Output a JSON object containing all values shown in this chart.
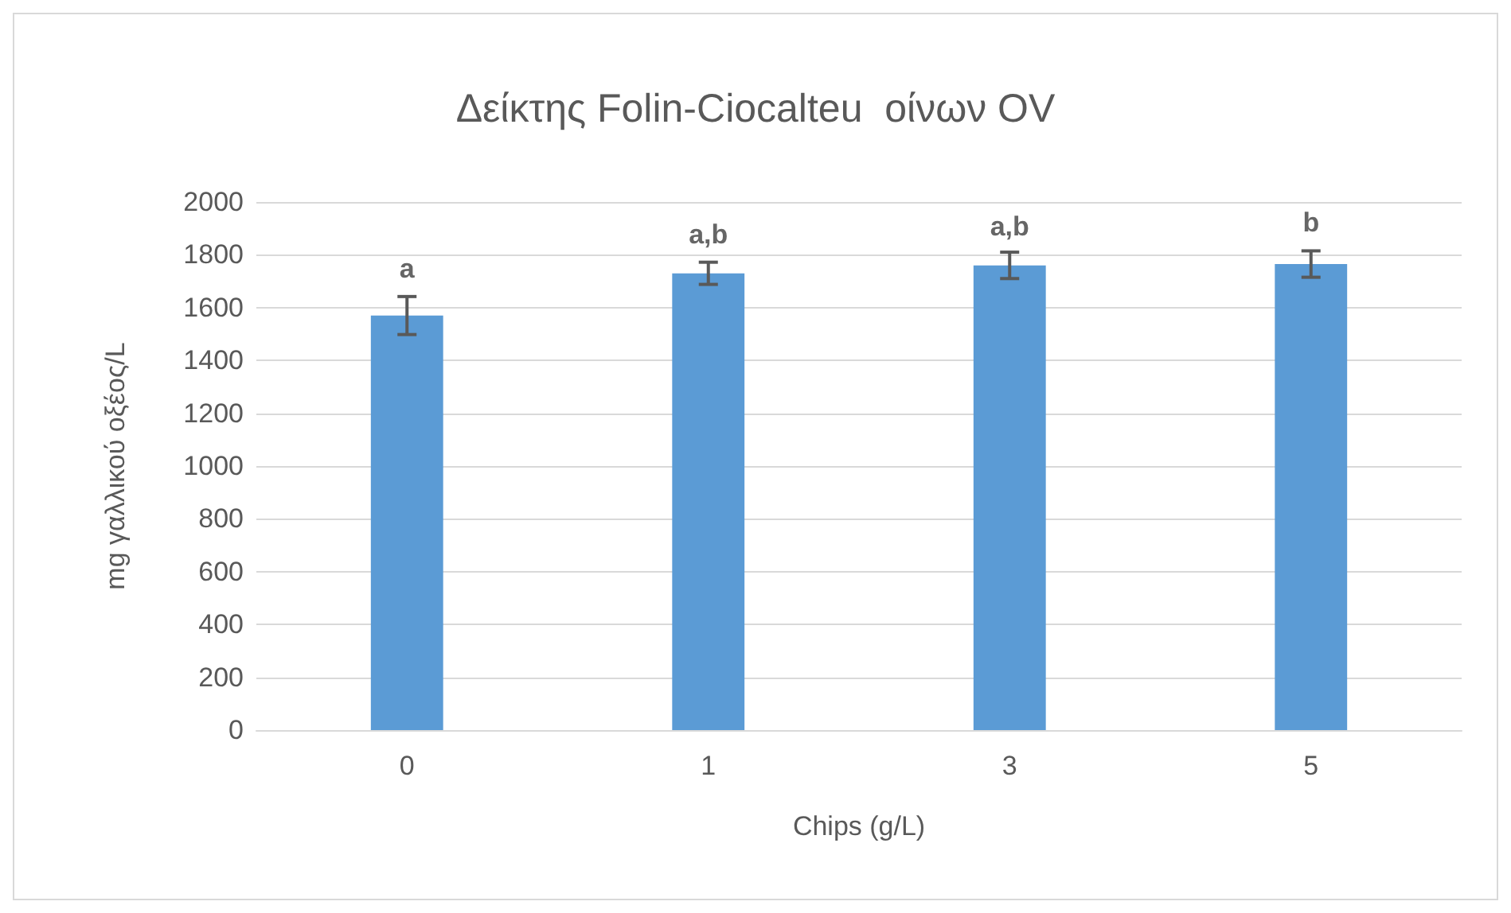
{
  "chart_data": {
    "type": "bar",
    "title": "Δείκτης Folin-Ciocalteu  οίνων OV",
    "xlabel": "Chips (g/L)",
    "ylabel": "mg γαλλικού οξέος/L",
    "categories": [
      "0",
      "1",
      "3",
      "5"
    ],
    "series": [
      {
        "color": "#5b9bd5",
        "values": [
          1570,
          1730,
          1760,
          1765
        ],
        "errors": [
          72,
          42,
          50,
          50
        ]
      }
    ],
    "ylim": [
      0,
      2000
    ],
    "yticks": [
      0,
      200,
      400,
      600,
      800,
      1000,
      1200,
      1400,
      1600,
      1800,
      2000
    ],
    "grid": "y",
    "annotations": [
      {
        "text": "a",
        "x": "0",
        "y": 1648
      },
      {
        "text": "a,b",
        "x": "1",
        "y": 1777
      },
      {
        "text": "a,b",
        "x": "3",
        "y": 1808
      },
      {
        "text": "b",
        "x": "5",
        "y": 1823
      }
    ]
  }
}
